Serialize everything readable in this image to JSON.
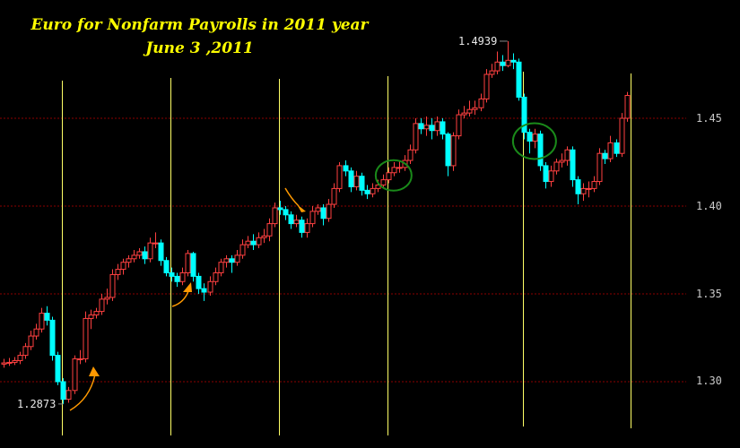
{
  "chart_data": {
    "type": "candlestick",
    "title": "Euro for Nonfarm Payrolls in 2011 year",
    "subtitle": "June 3 ,2011",
    "ylim": [
      1.27,
      1.51
    ],
    "yticks": [
      "1.45",
      "1.40",
      "1.35",
      "1.30"
    ],
    "yticks_values": [
      1.45,
      1.4,
      1.35,
      1.3
    ],
    "grid": "horizontal dotted",
    "annotations": {
      "low_label": "1.2873",
      "low_value": 1.2873,
      "low_index": 11,
      "high_label": "1.4939",
      "high_value": 1.4939,
      "high_index": 93
    },
    "event_marker_indices": [
      11,
      31,
      51,
      71,
      96,
      116
    ],
    "highlight_circle_indices": [
      71,
      97
    ],
    "arrow_indices": [
      14,
      34,
      54
    ],
    "colors": {
      "bull": "#ff4040",
      "bear": "#00ffff",
      "grid": "#8b0000",
      "event_line": "#ffff66",
      "arrow": "#ff9900",
      "circle": "#1a8a1a",
      "title": "#ffff00"
    },
    "candles_ohlc": [
      [
        1.31,
        1.313,
        1.308,
        1.3107
      ],
      [
        1.3107,
        1.3135,
        1.309,
        1.311
      ],
      [
        1.311,
        1.314,
        1.3095,
        1.312
      ],
      [
        1.312,
        1.317,
        1.31,
        1.315
      ],
      [
        1.315,
        1.322,
        1.313,
        1.32
      ],
      [
        1.32,
        1.329,
        1.318,
        1.326
      ],
      [
        1.326,
        1.333,
        1.324,
        1.33
      ],
      [
        1.33,
        1.342,
        1.328,
        1.339
      ],
      [
        1.339,
        1.343,
        1.332,
        1.335
      ],
      [
        1.335,
        1.337,
        1.312,
        1.315
      ],
      [
        1.315,
        1.317,
        1.298,
        1.3
      ],
      [
        1.3,
        1.302,
        1.2873,
        1.29
      ],
      [
        1.29,
        1.297,
        1.288,
        1.295
      ],
      [
        1.295,
        1.315,
        1.293,
        1.313
      ],
      [
        1.313,
        1.318,
        1.31,
        1.313
      ],
      [
        1.313,
        1.34,
        1.311,
        1.336
      ],
      [
        1.336,
        1.341,
        1.33,
        1.338
      ],
      [
        1.338,
        1.342,
        1.336,
        1.34
      ],
      [
        1.34,
        1.35,
        1.338,
        1.347
      ],
      [
        1.347,
        1.353,
        1.344,
        1.348
      ],
      [
        1.348,
        1.364,
        1.346,
        1.361
      ],
      [
        1.361,
        1.367,
        1.358,
        1.364
      ],
      [
        1.364,
        1.37,
        1.361,
        1.368
      ],
      [
        1.368,
        1.372,
        1.365,
        1.37
      ],
      [
        1.37,
        1.375,
        1.368,
        1.372
      ],
      [
        1.372,
        1.376,
        1.37,
        1.374
      ],
      [
        1.374,
        1.377,
        1.367,
        1.37
      ],
      [
        1.37,
        1.382,
        1.368,
        1.379
      ],
      [
        1.379,
        1.385,
        1.376,
        1.379
      ],
      [
        1.379,
        1.381,
        1.366,
        1.369
      ],
      [
        1.369,
        1.371,
        1.36,
        1.362
      ],
      [
        1.362,
        1.365,
        1.357,
        1.36
      ],
      [
        1.36,
        1.362,
        1.354,
        1.357
      ],
      [
        1.357,
        1.365,
        1.355,
        1.362
      ],
      [
        1.362,
        1.375,
        1.36,
        1.373
      ],
      [
        1.373,
        1.374,
        1.357,
        1.36
      ],
      [
        1.36,
        1.362,
        1.35,
        1.353
      ],
      [
        1.353,
        1.356,
        1.346,
        1.351
      ],
      [
        1.351,
        1.36,
        1.349,
        1.357
      ],
      [
        1.357,
        1.365,
        1.355,
        1.362
      ],
      [
        1.362,
        1.37,
        1.36,
        1.368
      ],
      [
        1.368,
        1.372,
        1.365,
        1.37
      ],
      [
        1.37,
        1.372,
        1.362,
        1.368
      ],
      [
        1.368,
        1.375,
        1.366,
        1.372
      ],
      [
        1.372,
        1.381,
        1.37,
        1.378
      ],
      [
        1.378,
        1.383,
        1.376,
        1.38
      ],
      [
        1.38,
        1.384,
        1.375,
        1.378
      ],
      [
        1.378,
        1.385,
        1.376,
        1.382
      ],
      [
        1.382,
        1.387,
        1.379,
        1.383
      ],
      [
        1.383,
        1.393,
        1.38,
        1.39
      ],
      [
        1.39,
        1.402,
        1.388,
        1.399
      ],
      [
        1.399,
        1.403,
        1.395,
        1.398
      ],
      [
        1.398,
        1.4,
        1.392,
        1.395
      ],
      [
        1.395,
        1.397,
        1.387,
        1.39
      ],
      [
        1.39,
        1.395,
        1.388,
        1.392
      ],
      [
        1.392,
        1.394,
        1.382,
        1.385
      ],
      [
        1.385,
        1.393,
        1.382,
        1.39
      ],
      [
        1.39,
        1.4,
        1.388,
        1.397
      ],
      [
        1.397,
        1.401,
        1.395,
        1.399
      ],
      [
        1.399,
        1.401,
        1.389,
        1.393
      ],
      [
        1.393,
        1.404,
        1.391,
        1.401
      ],
      [
        1.401,
        1.413,
        1.399,
        1.41
      ],
      [
        1.41,
        1.425,
        1.408,
        1.423
      ],
      [
        1.423,
        1.426,
        1.417,
        1.42
      ],
      [
        1.42,
        1.422,
        1.408,
        1.411
      ],
      [
        1.411,
        1.42,
        1.409,
        1.417
      ],
      [
        1.417,
        1.419,
        1.406,
        1.409
      ],
      [
        1.409,
        1.412,
        1.404,
        1.407
      ],
      [
        1.407,
        1.413,
        1.405,
        1.41
      ],
      [
        1.41,
        1.415,
        1.408,
        1.412
      ],
      [
        1.412,
        1.418,
        1.41,
        1.415
      ],
      [
        1.415,
        1.422,
        1.413,
        1.419
      ],
      [
        1.419,
        1.425,
        1.417,
        1.422
      ],
      [
        1.422,
        1.426,
        1.419,
        1.422
      ],
      [
        1.422,
        1.429,
        1.42,
        1.426
      ],
      [
        1.426,
        1.435,
        1.424,
        1.432
      ],
      [
        1.432,
        1.45,
        1.43,
        1.447
      ],
      [
        1.447,
        1.45,
        1.441,
        1.444
      ],
      [
        1.444,
        1.451,
        1.44,
        1.446
      ],
      [
        1.446,
        1.45,
        1.438,
        1.443
      ],
      [
        1.443,
        1.451,
        1.44,
        1.448
      ],
      [
        1.448,
        1.45,
        1.438,
        1.441
      ],
      [
        1.441,
        1.442,
        1.417,
        1.423
      ],
      [
        1.423,
        1.442,
        1.42,
        1.44
      ],
      [
        1.44,
        1.455,
        1.438,
        1.452
      ],
      [
        1.452,
        1.457,
        1.45,
        1.453
      ],
      [
        1.453,
        1.46,
        1.451,
        1.455
      ],
      [
        1.455,
        1.46,
        1.452,
        1.456
      ],
      [
        1.456,
        1.464,
        1.454,
        1.461
      ],
      [
        1.461,
        1.478,
        1.459,
        1.475
      ],
      [
        1.475,
        1.481,
        1.473,
        1.477
      ],
      [
        1.477,
        1.488,
        1.475,
        1.482
      ],
      [
        1.482,
        1.486,
        1.477,
        1.48
      ],
      [
        1.48,
        1.4939,
        1.479,
        1.483
      ],
      [
        1.483,
        1.487,
        1.478,
        1.482
      ],
      [
        1.482,
        1.484,
        1.46,
        1.462
      ],
      [
        1.462,
        1.464,
        1.438,
        1.442
      ],
      [
        1.442,
        1.444,
        1.43,
        1.437
      ],
      [
        1.437,
        1.444,
        1.433,
        1.441
      ],
      [
        1.441,
        1.443,
        1.42,
        1.423
      ],
      [
        1.423,
        1.425,
        1.41,
        1.414
      ],
      [
        1.414,
        1.423,
        1.411,
        1.42
      ],
      [
        1.42,
        1.427,
        1.418,
        1.425
      ],
      [
        1.425,
        1.43,
        1.422,
        1.426
      ],
      [
        1.426,
        1.434,
        1.423,
        1.432
      ],
      [
        1.432,
        1.434,
        1.411,
        1.415
      ],
      [
        1.415,
        1.417,
        1.401,
        1.407
      ],
      [
        1.407,
        1.413,
        1.403,
        1.41
      ],
      [
        1.41,
        1.414,
        1.405,
        1.41
      ],
      [
        1.41,
        1.417,
        1.408,
        1.414
      ],
      [
        1.414,
        1.433,
        1.412,
        1.43
      ],
      [
        1.43,
        1.432,
        1.424,
        1.427
      ],
      [
        1.427,
        1.44,
        1.425,
        1.436
      ],
      [
        1.436,
        1.438,
        1.428,
        1.43
      ],
      [
        1.43,
        1.453,
        1.428,
        1.45
      ],
      [
        1.45,
        1.465,
        1.448,
        1.463
      ]
    ]
  }
}
